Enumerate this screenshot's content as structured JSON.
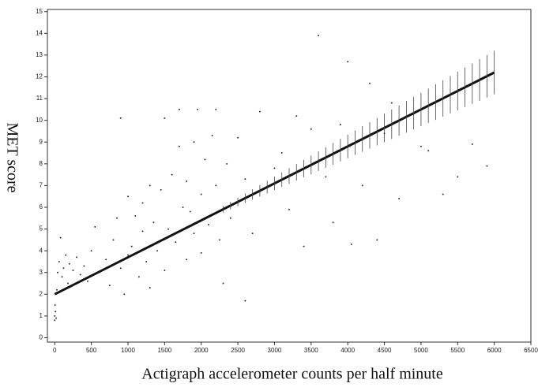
{
  "chart_data": {
    "type": "scatter",
    "x_label": "Actigraph accelerometer counts per half minute",
    "y_label": "MET score",
    "xlim": [
      -100,
      6500
    ],
    "ylim": [
      -0.2,
      15.1
    ],
    "xticks": [
      0,
      500,
      1000,
      1500,
      2000,
      2500,
      3000,
      3500,
      4000,
      4500,
      5000,
      5500,
      6000,
      6500
    ],
    "yticks": [
      0,
      1,
      2,
      3,
      4,
      5,
      6,
      7,
      8,
      9,
      10,
      11,
      12,
      13,
      14,
      15
    ],
    "series": [
      {
        "type": "scatter",
        "color": "#333333",
        "x": [
          0,
          0,
          10,
          20,
          5,
          30,
          40,
          60,
          80,
          100,
          120,
          150,
          180,
          200,
          250,
          300,
          350,
          400,
          450,
          500,
          550,
          600,
          700,
          750,
          800,
          850,
          900,
          900,
          950,
          1000,
          1000,
          1050,
          1100,
          1150,
          1200,
          1200,
          1250,
          1300,
          1300,
          1350,
          1400,
          1450,
          1500,
          1500,
          1550,
          1600,
          1650,
          1700,
          1700,
          1750,
          1800,
          1800,
          1850,
          1900,
          1900,
          1950,
          2000,
          2000,
          2050,
          2100,
          2150,
          2200,
          2200,
          2250,
          2300,
          2350,
          2400,
          2500,
          2600,
          2600,
          2700,
          2800,
          2900,
          3000,
          3100,
          3200,
          3300,
          3400,
          3500,
          3600,
          3700,
          3800,
          3900,
          4000,
          4050,
          4200,
          4300,
          4400,
          4500,
          4600,
          4700,
          4900,
          5000,
          5100,
          5300,
          5500,
          5700,
          5900
        ],
        "values": [
          0.8,
          1.0,
          1.2,
          0.9,
          1.5,
          2.2,
          3.0,
          3.5,
          4.6,
          2.8,
          3.2,
          3.8,
          2.5,
          3.4,
          3.1,
          3.7,
          2.9,
          3.3,
          2.6,
          4.0,
          5.1,
          3.0,
          3.6,
          2.4,
          4.5,
          5.5,
          10.1,
          3.2,
          2.0,
          6.5,
          3.8,
          4.2,
          5.6,
          2.8,
          6.2,
          4.9,
          3.5,
          7.0,
          2.3,
          5.3,
          4.0,
          6.8,
          10.1,
          3.1,
          5.0,
          7.5,
          4.4,
          10.5,
          8.8,
          6.0,
          3.6,
          7.2,
          5.8,
          9.0,
          4.8,
          10.5,
          6.6,
          3.9,
          8.2,
          5.2,
          9.3,
          10.5,
          7.0,
          4.5,
          2.5,
          8.0,
          5.5,
          9.2,
          1.7,
          7.3,
          4.8,
          10.4,
          6.9,
          7.8,
          8.5,
          5.9,
          10.2,
          4.2,
          9.6,
          13.9,
          7.4,
          5.3,
          9.8,
          12.7,
          4.3,
          7.0,
          11.7,
          4.5,
          9.4,
          10.8,
          6.4,
          10.3,
          8.8,
          8.6,
          6.6,
          7.4,
          8.9,
          7.9
        ]
      },
      {
        "type": "line",
        "color": "#111111",
        "x": [
          0,
          6000
        ],
        "values": [
          2.0,
          12.2
        ]
      },
      {
        "type": "errorbar",
        "color": "#444444",
        "x": [
          2300,
          2400,
          2500,
          2600,
          2700,
          2800,
          2900,
          3000,
          3100,
          3200,
          3300,
          3400,
          3500,
          3600,
          3700,
          3800,
          3900,
          4000,
          4100,
          4200,
          4300,
          4400,
          4500,
          4600,
          4700,
          4800,
          4900,
          5000,
          5100,
          5200,
          5300,
          5400,
          5500,
          5600,
          5700,
          5800,
          5900,
          6000
        ],
        "values": [
          5.91,
          6.08,
          6.25,
          6.42,
          6.59,
          6.76,
          6.93,
          7.1,
          7.27,
          7.44,
          7.61,
          7.78,
          7.95,
          8.12,
          8.29,
          8.46,
          8.63,
          8.8,
          8.97,
          9.14,
          9.31,
          9.48,
          9.65,
          9.82,
          9.99,
          10.16,
          10.33,
          10.5,
          10.67,
          10.84,
          11.01,
          11.18,
          11.35,
          11.52,
          11.69,
          11.86,
          12.03,
          12.2
        ],
        "errors": [
          0.15,
          0.17,
          0.2,
          0.22,
          0.24,
          0.27,
          0.29,
          0.31,
          0.33,
          0.36,
          0.38,
          0.4,
          0.43,
          0.45,
          0.47,
          0.5,
          0.52,
          0.54,
          0.56,
          0.59,
          0.61,
          0.63,
          0.66,
          0.68,
          0.7,
          0.73,
          0.75,
          0.77,
          0.79,
          0.82,
          0.84,
          0.86,
          0.89,
          0.91,
          0.93,
          0.96,
          0.98,
          1.0
        ]
      }
    ]
  }
}
